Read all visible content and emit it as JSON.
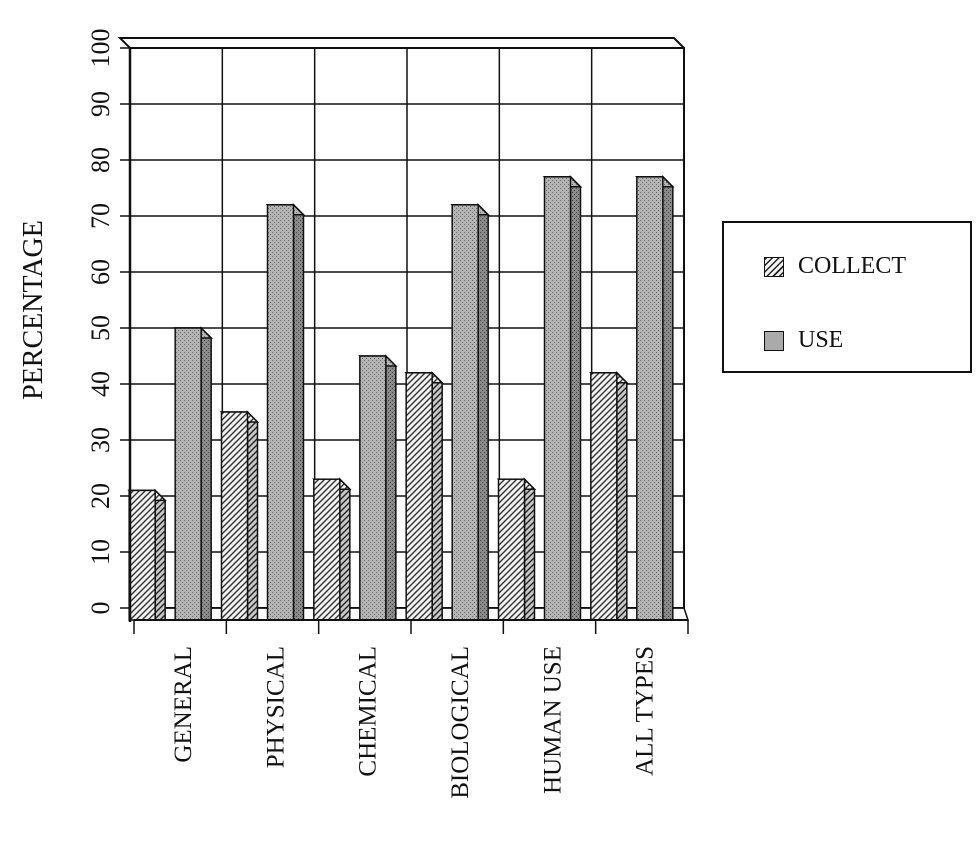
{
  "chart_data": {
    "type": "bar",
    "title": "",
    "xlabel": "",
    "ylabel": "PERCENTAGE",
    "ylim": [
      0,
      100
    ],
    "yticks": [
      0,
      10,
      20,
      30,
      40,
      50,
      60,
      70,
      80,
      90,
      100
    ],
    "grid": true,
    "legend_position": "right",
    "categories": [
      "GENERAL",
      "PHYSICAL",
      "CHEMICAL",
      "BIOLOGICAL",
      "HUMAN USE",
      "ALL TYPES"
    ],
    "series": [
      {
        "name": "COLLECT",
        "values": [
          21,
          35,
          23,
          42,
          23,
          42
        ],
        "fill": "hatched"
      },
      {
        "name": "USE",
        "values": [
          50,
          72,
          45,
          72,
          77,
          77
        ],
        "fill": "stippled-gray"
      }
    ]
  }
}
